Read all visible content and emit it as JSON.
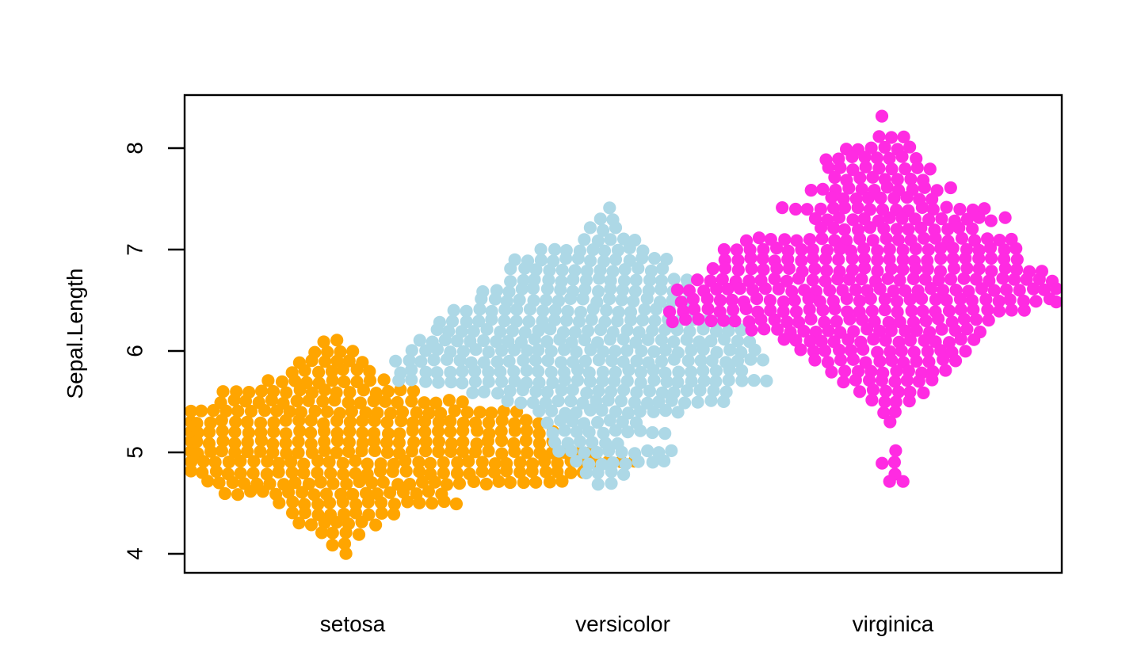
{
  "chart_data": {
    "type": "scatter",
    "subtype": "beeswarm",
    "title": "",
    "xlabel": "",
    "ylabel": "Sepal.Length",
    "categories": [
      "setosa",
      "versicolor",
      "virginica"
    ],
    "y_ticks": [
      "4",
      "5",
      "6",
      "7",
      "8"
    ],
    "ylim": [
      3.8,
      8.55
    ],
    "grid": false,
    "legend": "none",
    "frame_color": "#000000",
    "row_format": "[sepal_length_value, point_count, run_start_offset_in_point_diameters_from_group_center]",
    "series": [
      {
        "name": "setosa",
        "color": "#FFA500",
        "rows": [
          [
            6.1,
            2,
            -2.2
          ],
          [
            6.0,
            4,
            -3.0
          ],
          [
            5.9,
            6,
            -4.2
          ],
          [
            5.8,
            7,
            -4.7
          ],
          [
            5.7,
            10,
            -6.6
          ],
          [
            5.6,
            16,
            -10.2
          ],
          [
            5.5,
            20,
            -10.4
          ],
          [
            5.4,
            27,
            -13.0
          ],
          [
            5.3,
            29,
            -13.25
          ],
          [
            5.2,
            30,
            -13.25
          ],
          [
            5.1,
            30,
            -13.25
          ],
          [
            5.0,
            33,
            -13.25
          ],
          [
            4.9,
            36,
            -12.8
          ],
          [
            4.8,
            32,
            -12.8
          ],
          [
            4.7,
            29,
            -11.5
          ],
          [
            4.6,
            18,
            -10.0
          ],
          [
            4.5,
            15,
            -5.75
          ],
          [
            4.4,
            9,
            -4.7
          ],
          [
            4.3,
            7,
            -4.25
          ],
          [
            4.2,
            4,
            -2.5
          ],
          [
            4.1,
            2,
            -1.6
          ],
          [
            4.0,
            1,
            -0.5
          ]
        ]
      },
      {
        "name": "versicolor",
        "color": "#ADD8E6",
        "rows": [
          [
            7.4,
            1,
            -1.0
          ],
          [
            7.3,
            2,
            -1.8
          ],
          [
            7.2,
            3,
            -2.6
          ],
          [
            7.1,
            5,
            -3.0
          ],
          [
            7.0,
            9,
            -6.4
          ],
          [
            6.9,
            13,
            -8.5
          ],
          [
            6.8,
            13,
            -8.8
          ],
          [
            6.7,
            15,
            -8.9
          ],
          [
            6.6,
            17,
            -11.0
          ],
          [
            6.5,
            17,
            -11.1
          ],
          [
            6.4,
            18,
            -13.3
          ],
          [
            6.3,
            24,
            -14.4
          ],
          [
            6.2,
            25,
            -14.7
          ],
          [
            6.1,
            27,
            -16.0
          ],
          [
            6.0,
            28,
            -16.6
          ],
          [
            5.9,
            30,
            -17.9
          ],
          [
            5.8,
            28,
            -17.6
          ],
          [
            5.7,
            30,
            -17.6
          ],
          [
            5.6,
            21,
            -11.9
          ],
          [
            5.5,
            18,
            -9.1
          ],
          [
            5.4,
            12,
            -6.6
          ],
          [
            5.3,
            8,
            -6.0
          ],
          [
            5.2,
            10,
            -5.6
          ],
          [
            5.1,
            6,
            -5.4
          ],
          [
            5.0,
            10,
            -5.1
          ],
          [
            4.9,
            8,
            -3.7
          ],
          [
            4.8,
            4,
            -2.9
          ],
          [
            4.7,
            2,
            -1.9
          ]
        ]
      },
      {
        "name": "virginica",
        "color": "#FF2BE2",
        "rows": [
          [
            8.3,
            1,
            -0.9
          ],
          [
            8.1,
            3,
            -1.1
          ],
          [
            8.0,
            6,
            -3.7
          ],
          [
            7.9,
            8,
            -5.25
          ],
          [
            7.8,
            9,
            -5.1
          ],
          [
            7.7,
            8,
            -4.6
          ],
          [
            7.6,
            12,
            -6.5
          ],
          [
            7.5,
            9,
            -4.9
          ],
          [
            7.4,
            17,
            -8.75
          ],
          [
            7.3,
            16,
            -6.2
          ],
          [
            7.2,
            13,
            -5.75
          ],
          [
            7.1,
            22,
            -11.6
          ],
          [
            7.0,
            24,
            -13.25
          ],
          [
            6.9,
            24,
            -13.25
          ],
          [
            6.8,
            27,
            -14.2
          ],
          [
            6.7,
            29,
            -15.4
          ],
          [
            6.6,
            31,
            -17.0
          ],
          [
            6.5,
            31,
            -16.7
          ],
          [
            6.4,
            29,
            -17.6
          ],
          [
            6.3,
            26,
            -17.4
          ],
          [
            6.2,
            19,
            -11.1
          ],
          [
            6.1,
            16,
            -8.6
          ],
          [
            6.0,
            14,
            -7.3
          ],
          [
            5.9,
            12,
            -6.1
          ],
          [
            5.8,
            10,
            -4.8
          ],
          [
            5.7,
            8,
            -3.9
          ],
          [
            5.6,
            6,
            -2.6
          ],
          [
            5.5,
            4,
            -1.7
          ],
          [
            5.4,
            2,
            -0.75
          ],
          [
            5.3,
            1,
            -0.3
          ],
          [
            5.0,
            1,
            0.2
          ],
          [
            4.9,
            2,
            -0.9
          ],
          [
            4.8,
            1,
            0.2
          ],
          [
            4.7,
            2,
            -0.25
          ]
        ]
      }
    ]
  }
}
